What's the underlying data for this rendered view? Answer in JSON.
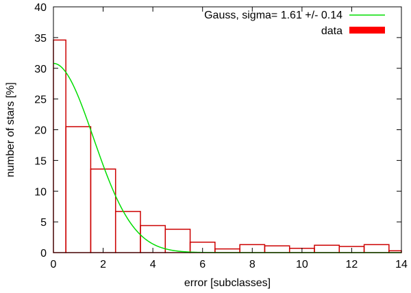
{
  "chart_data": {
    "type": "bar",
    "xlabel": "error [subclasses]",
    "ylabel": "number of stars [%]",
    "xlim": [
      0,
      14
    ],
    "ylim": [
      0,
      40
    ],
    "xticks": [
      0,
      2,
      4,
      6,
      8,
      10,
      12,
      14
    ],
    "yticks": [
      0,
      5,
      10,
      15,
      20,
      25,
      30,
      35,
      40
    ],
    "grid": false,
    "legend_position": "top-right",
    "series": [
      {
        "name": "data",
        "type": "histogram",
        "color": "#cc0000",
        "bins": [
          {
            "x0": -0.5,
            "x1": 0.5,
            "value": 34.6
          },
          {
            "x0": 0.5,
            "x1": 1.5,
            "value": 20.5
          },
          {
            "x0": 1.5,
            "x1": 2.5,
            "value": 13.6
          },
          {
            "x0": 2.5,
            "x1": 3.5,
            "value": 6.7
          },
          {
            "x0": 3.5,
            "x1": 4.5,
            "value": 4.4
          },
          {
            "x0": 4.5,
            "x1": 5.5,
            "value": 3.8
          },
          {
            "x0": 5.5,
            "x1": 6.5,
            "value": 1.7
          },
          {
            "x0": 6.5,
            "x1": 7.5,
            "value": 0.6
          },
          {
            "x0": 7.5,
            "x1": 8.5,
            "value": 1.3
          },
          {
            "x0": 8.5,
            "x1": 9.5,
            "value": 1.1
          },
          {
            "x0": 9.5,
            "x1": 10.5,
            "value": 0.7
          },
          {
            "x0": 10.5,
            "x1": 11.5,
            "value": 1.2
          },
          {
            "x0": 11.5,
            "x1": 12.5,
            "value": 1.0
          },
          {
            "x0": 12.5,
            "x1": 13.5,
            "value": 1.3
          },
          {
            "x0": 13.5,
            "x1": 14.5,
            "value": 0.3
          }
        ]
      },
      {
        "name": "Gauss, sigma= 1.61 +/- 0.14",
        "type": "line",
        "color": "#00dd00",
        "function": "gaussian",
        "amplitude": 30.8,
        "mean": 0,
        "sigma": 1.61,
        "x_range": [
          0,
          14
        ]
      }
    ],
    "legend": [
      {
        "label": "Gauss, sigma= 1.61 +/- 0.14",
        "color": "#00dd00",
        "marker": "line"
      },
      {
        "label": "data",
        "color": "#ff0000",
        "marker": "box"
      }
    ]
  }
}
